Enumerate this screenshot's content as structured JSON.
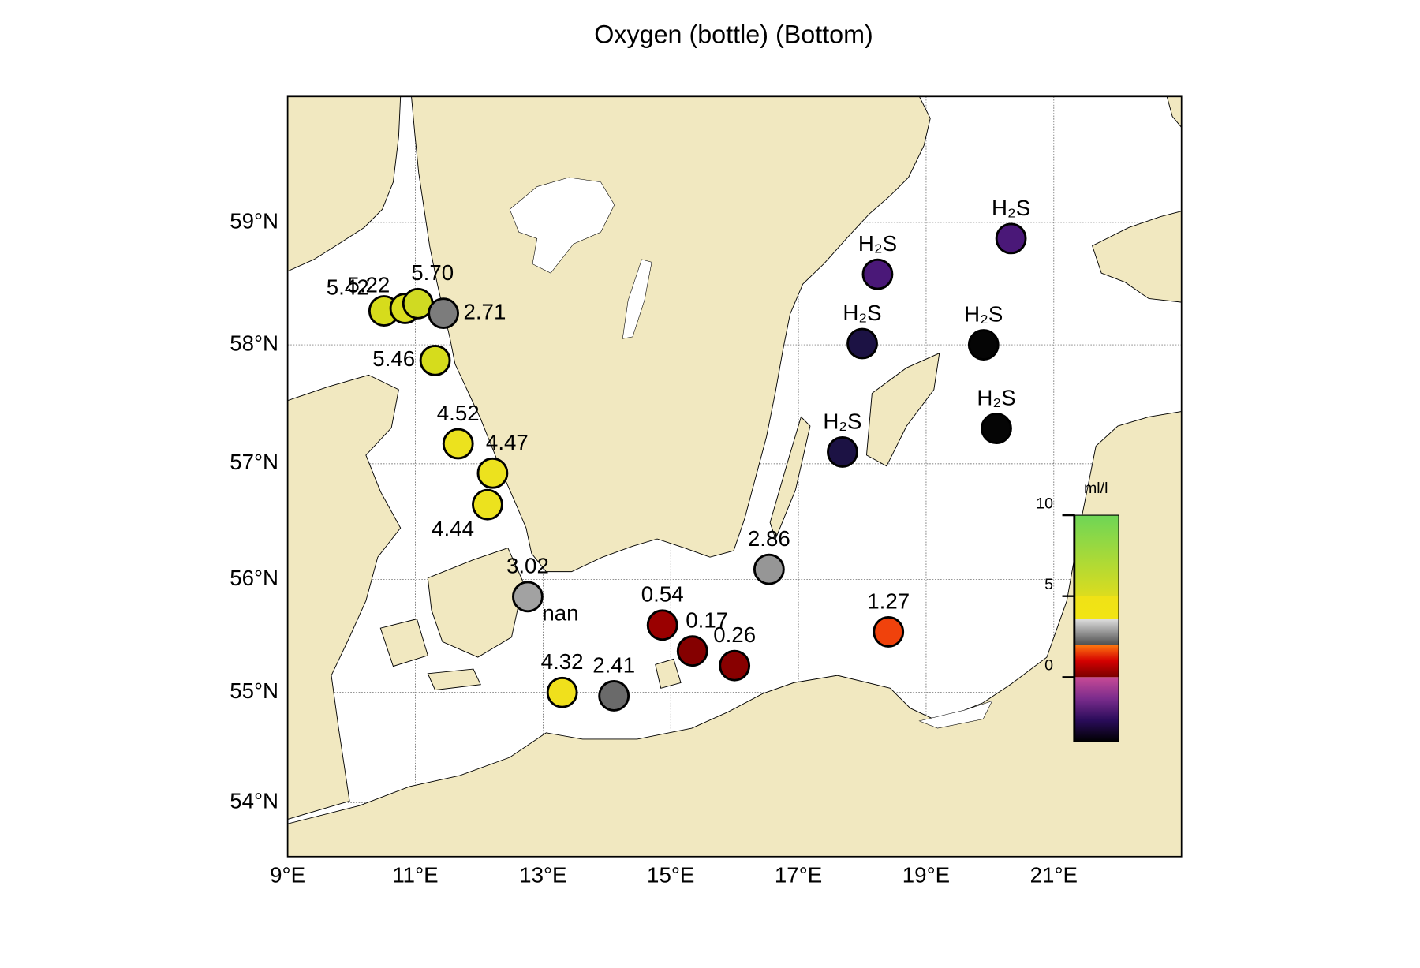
{
  "chart_data": {
    "type": "station-map",
    "title": "Oxygen (bottle) (Bottom)",
    "xlim": [
      9,
      23
    ],
    "ylim": [
      53.5,
      60
    ],
    "xticks": [
      {
        "value": 9,
        "label": "9°E"
      },
      {
        "value": 11,
        "label": "11°E"
      },
      {
        "value": 13,
        "label": "13°E"
      },
      {
        "value": 15,
        "label": "15°E"
      },
      {
        "value": 17,
        "label": "17°E"
      },
      {
        "value": 19,
        "label": "19°E"
      },
      {
        "value": 21,
        "label": "21°E"
      }
    ],
    "yticks": [
      {
        "value": 54,
        "label": "54°N"
      },
      {
        "value": 55,
        "label": "55°N"
      },
      {
        "value": 56,
        "label": "56°N"
      },
      {
        "value": 57,
        "label": "57°N"
      },
      {
        "value": 58,
        "label": "58°N"
      },
      {
        "value": 59,
        "label": "59°N"
      }
    ],
    "grid": true,
    "projection": "mercator",
    "stations": [
      {
        "lon": 10.51,
        "lat": 58.28,
        "value": 5.42,
        "label": "5.42",
        "color": "#d6dc1c",
        "label_side": "above-left"
      },
      {
        "lon": 10.84,
        "lat": 58.3,
        "value": 5.22,
        "label": "5.22",
        "color": "#d9dd1e",
        "label_side": "above-left"
      },
      {
        "lon": 11.04,
        "lat": 58.34,
        "value": 5.7,
        "label": "5.70",
        "color": "#d0da22",
        "label_side": "above-right"
      },
      {
        "lon": 11.44,
        "lat": 58.26,
        "value": 2.71,
        "label": "2.71",
        "color": "#7c7c7c",
        "label_side": "right"
      },
      {
        "lon": 11.31,
        "lat": 57.87,
        "value": 5.46,
        "label": "5.46",
        "color": "#d6dc1c",
        "label_side": "left"
      },
      {
        "lon": 11.67,
        "lat": 57.17,
        "value": 4.52,
        "label": "4.52",
        "color": "#ece21e",
        "label_side": "above"
      },
      {
        "lon": 12.21,
        "lat": 56.92,
        "value": 4.47,
        "label": "4.47",
        "color": "#ece21e",
        "label_side": "above-right"
      },
      {
        "lon": 12.13,
        "lat": 56.65,
        "value": 4.44,
        "label": "4.44",
        "color": "#ece21e",
        "label_side": "below-left"
      },
      {
        "lon": 12.76,
        "lat": 55.85,
        "value": 3.02,
        "label": "3.02",
        "color": "#a2a2a2",
        "label_side": "above"
      },
      {
        "lon": 12.76,
        "lat": 55.85,
        "value": null,
        "label": "nan",
        "color": null,
        "label_side": "below-right"
      },
      {
        "lon": 13.3,
        "lat": 55.0,
        "value": 4.32,
        "label": "4.32",
        "color": "#f0e01c",
        "label_side": "above"
      },
      {
        "lon": 14.11,
        "lat": 54.97,
        "value": 2.41,
        "label": "2.41",
        "color": "#6a6a6a",
        "label_side": "above"
      },
      {
        "lon": 14.87,
        "lat": 55.6,
        "value": 0.54,
        "label": "0.54",
        "color": "#9a0000",
        "label_side": "above"
      },
      {
        "lon": 15.34,
        "lat": 55.37,
        "value": 0.17,
        "label": "0.17",
        "color": "#850000",
        "label_side": "above-right"
      },
      {
        "lon": 16.0,
        "lat": 55.24,
        "value": 0.26,
        "label": "0.26",
        "color": "#880000",
        "label_side": "above"
      },
      {
        "lon": 16.54,
        "lat": 56.09,
        "value": 2.86,
        "label": "2.86",
        "color": "#969696",
        "label_side": "above"
      },
      {
        "lon": 18.41,
        "lat": 55.54,
        "value": 1.27,
        "label": "1.27",
        "color": "#f0420c",
        "label_side": "above"
      },
      {
        "lon": 20.33,
        "lat": 58.87,
        "value": null,
        "label": "H₂S",
        "color": "#4a1878",
        "label_side": "above"
      },
      {
        "lon": 18.24,
        "lat": 58.58,
        "value": null,
        "label": "H₂S",
        "color": "#4a1878",
        "label_side": "above"
      },
      {
        "lon": 18.0,
        "lat": 58.01,
        "value": null,
        "label": "H₂S",
        "color": "#1c1244",
        "label_side": "above"
      },
      {
        "lon": 19.9,
        "lat": 58.0,
        "value": null,
        "label": "H₂S",
        "color": "#050505",
        "label_side": "above"
      },
      {
        "lon": 20.1,
        "lat": 57.3,
        "value": null,
        "label": "H₂S",
        "color": "#050505",
        "label_side": "above"
      },
      {
        "lon": 17.69,
        "lat": 57.1,
        "value": null,
        "label": "H₂S",
        "color": "#1c1244",
        "label_side": "above"
      }
    ],
    "colorbar": {
      "label": "ml/l",
      "lim": [
        -4,
        10
      ],
      "ticks": [
        0,
        5,
        10
      ],
      "segments": [
        {
          "from": -4,
          "to": 0,
          "colors": [
            "#000000",
            "#2a0c5a",
            "#7a2c8c",
            "#c84a96"
          ]
        },
        {
          "from": 0,
          "to": 2,
          "colors": [
            "#7a0000",
            "#d40000",
            "#ff7a10"
          ]
        },
        {
          "from": 2,
          "to": 3.6,
          "colors": [
            "#505050",
            "#e0e0e0"
          ]
        },
        {
          "from": 3.6,
          "to": 5,
          "colors": [
            "#f2e414",
            "#efe216"
          ]
        },
        {
          "from": 5,
          "to": 10,
          "colors": [
            "#dcdc1e",
            "#6ed656"
          ]
        }
      ]
    }
  }
}
